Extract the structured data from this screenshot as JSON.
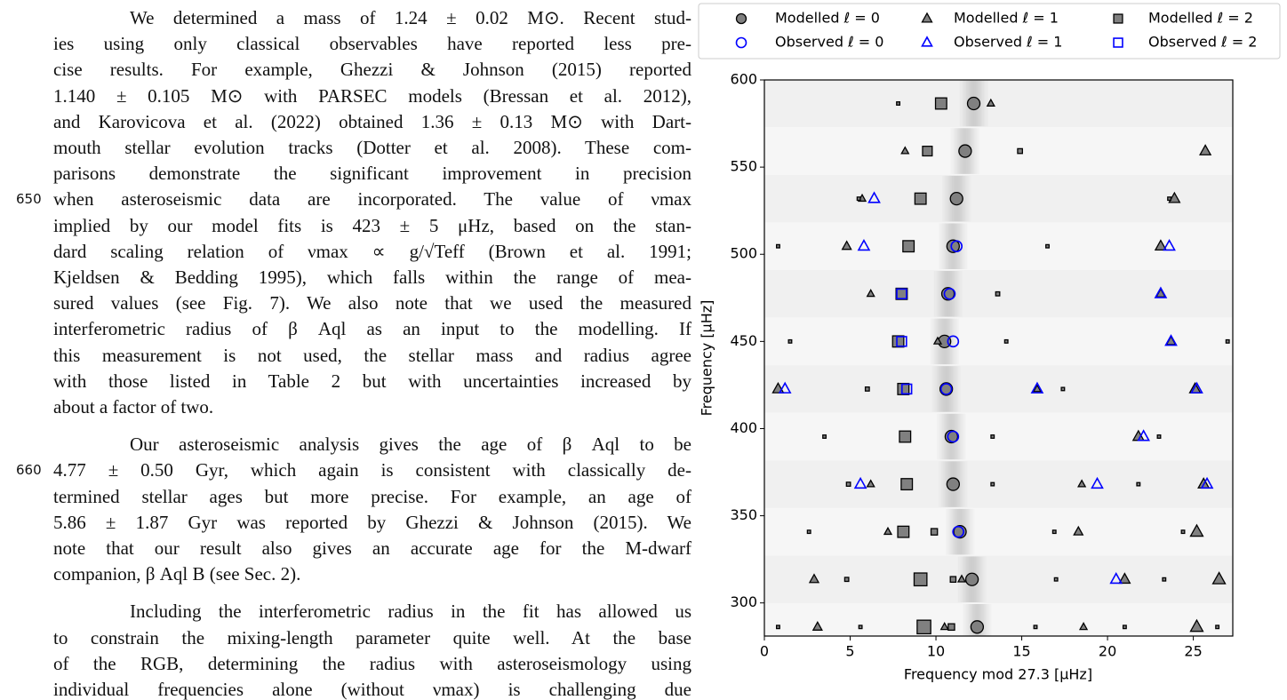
{
  "text": {
    "line_numbers": [
      "650",
      "660"
    ],
    "paragraphs": [
      [
        "We determined a mass of 1.24 ± 0.02 M⊙. Recent stud-",
        "ies using only classical observables have reported less pre-",
        "cise results. For example, Ghezzi & Johnson (2015) reported",
        "1.140 ± 0.105 M⊙ with PARSEC models (Bressan et al. 2012),",
        "and Karovicova et al. (2022) obtained 1.36 ± 0.13 M⊙ with Dart-",
        "mouth stellar evolution tracks (Dotter et al. 2008). These com-",
        "parisons demonstrate the significant improvement in precision",
        "when asteroseismic data are incorporated. The value of νmax",
        "implied by our model fits is 423 ± 5 μHz, based on the stan-",
        "dard scaling relation of νmax ∝ g/√Teff (Brown et al. 1991;",
        "Kjeldsen & Bedding 1995), which falls within the range of mea-",
        "sured values (see Fig. 7). We also note that we used the measured",
        "interferometric radius of β Aql as an input to the modelling. If",
        "this measurement is not used, the stellar mass and radius agree",
        "with those listed in Table 2 but with uncertainties increased by",
        "about a factor of two."
      ],
      [
        "Our asteroseismic analysis gives the age of β Aql to be",
        "4.77 ± 0.50 Gyr, which again is consistent with classically de-",
        "termined stellar ages but more precise. For example, an age of",
        "5.86 ± 1.87 Gyr was reported by Ghezzi & Johnson (2015). We",
        "note that our result also gives an accurate age for the M-dwarf",
        "companion, β Aql B (see Sec. 2)."
      ],
      [
        "Including the interferometric radius in the fit has allowed us",
        "to constrain the mixing-length parameter quite well. At the base",
        "of the RGB, determining the radius with asteroseismology using",
        "individual frequencies alone (without νmax) is challenging due"
      ]
    ]
  },
  "chart_data": {
    "type": "scatter",
    "xlabel": "Frequency mod 27.3 [μHz]",
    "ylabel": "Frequency [μHz]",
    "xlim": [
      0,
      27.3
    ],
    "ylim": [
      281,
      600
    ],
    "xticks": [
      0,
      5,
      10,
      15,
      20,
      25
    ],
    "yticks": [
      300,
      350,
      400,
      450,
      500,
      550,
      600
    ],
    "series": [
      {
        "name": "Modelled ℓ = 0",
        "color": "#808080",
        "marker": "circle",
        "filled": true,
        "x": [
          12.2,
          11.7,
          11.2,
          11.0,
          10.7,
          10.5,
          10.6,
          10.9,
          11.0,
          11.4,
          12.1,
          12.4
        ],
        "y": [
          586.5,
          559.2,
          531.9,
          504.6,
          477.3,
          450,
          422.7,
          395.4,
          368.1,
          340.8,
          313.5,
          286.2
        ],
        "sizes": [
          7,
          7,
          7,
          7,
          7,
          7,
          7,
          7,
          7,
          7,
          7,
          7
        ]
      },
      {
        "name": "Modelled ℓ = 1",
        "color": "#808080",
        "marker": "triangle",
        "filled": true,
        "x": [
          13.2,
          8.2,
          25.7,
          5.7,
          23.9,
          4.8,
          23.1,
          6.2,
          23.1,
          10.1,
          23.7,
          0.8,
          15.9,
          25.1,
          21.8,
          6.2,
          18.5,
          25.6,
          7.2,
          18.3,
          25.2,
          2.9,
          11.5,
          21.0,
          26.5,
          3.1,
          10.5,
          18.6,
          25.2
        ],
        "y": [
          586.5,
          559.2,
          559.2,
          531.9,
          531.9,
          504.6,
          504.6,
          477.3,
          477.3,
          450,
          450,
          422.7,
          422.7,
          422.7,
          395.4,
          368.1,
          368.1,
          368.1,
          340.8,
          340.8,
          340.8,
          313.5,
          313.5,
          313.5,
          313.5,
          286.2,
          286.2,
          286.2,
          286.2
        ],
        "sizes": [
          4,
          4,
          6,
          4,
          6,
          5,
          6,
          4,
          5,
          4,
          5,
          6,
          4,
          6,
          6,
          4,
          4,
          6,
          4,
          5,
          7,
          5,
          4,
          6,
          7,
          5,
          4,
          4,
          7
        ]
      },
      {
        "name": "Modelled ℓ = 2",
        "color": "#808080",
        "marker": "square",
        "filled": true,
        "x": [
          10.3,
          7.8,
          9.5,
          14.9,
          9.1,
          5.5,
          23.6,
          8.4,
          0.8,
          16.5,
          8.0,
          13.6,
          7.8,
          1.5,
          14.1,
          27.0,
          8.1,
          6.0,
          17.4,
          8.2,
          3.5,
          13.3,
          23.0,
          8.3,
          4.9,
          13.3,
          21.8,
          8.1,
          9.9,
          2.6,
          16.9,
          24.4,
          9.1,
          11.0,
          4.8,
          17.0,
          23.3,
          9.3,
          10.9,
          0.8,
          5.6,
          15.8,
          21.0,
          26.4
        ],
        "y": [
          586.5,
          586.5,
          559.2,
          559.2,
          531.9,
          531.9,
          531.9,
          504.6,
          504.6,
          504.6,
          477.3,
          477.3,
          450,
          450,
          450,
          450,
          422.7,
          422.7,
          422.7,
          395.4,
          395.4,
          395.4,
          395.4,
          368.1,
          368.1,
          368.1,
          368.1,
          340.8,
          340.8,
          340.8,
          340.8,
          340.8,
          313.5,
          313.5,
          313.5,
          313.5,
          313.5,
          286.2,
          286.2,
          286.2,
          286.2,
          286.2,
          286.2,
          286.2
        ],
        "sizes": [
          7,
          2,
          6,
          3,
          7,
          2,
          2,
          7,
          2,
          2,
          7,
          2.5,
          7,
          2,
          2,
          2,
          7,
          2.5,
          2,
          7,
          2,
          2,
          2,
          7,
          2.5,
          2,
          2,
          7,
          4,
          2,
          2,
          2,
          8,
          3.5,
          2.5,
          2,
          2,
          8.5,
          4,
          2,
          2,
          2,
          2,
          2
        ]
      },
      {
        "name": "Observed ℓ = 0",
        "color": "#0000ff",
        "marker": "circle",
        "filled": false,
        "x": [
          11.2,
          10.8,
          11.0,
          10.6,
          11.0,
          11.3
        ],
        "y": [
          504.6,
          477.3,
          450,
          422.7,
          395.4,
          340.8
        ]
      },
      {
        "name": "Observed ℓ = 1",
        "color": "#0000ff",
        "marker": "triangle",
        "filled": false,
        "x": [
          6.4,
          5.8,
          23.6,
          23.1,
          23.7,
          1.2,
          15.9,
          25.2,
          22.1,
          5.6,
          19.4,
          25.8,
          20.5
        ],
        "y": [
          531.9,
          504.6,
          504.6,
          477.3,
          450,
          422.7,
          422.7,
          422.7,
          395.4,
          368.1,
          368.1,
          368.1,
          313.5
        ]
      },
      {
        "name": "Observed ℓ = 2",
        "color": "#0000ff",
        "marker": "square",
        "filled": false,
        "x": [
          8.0,
          8.0,
          8.3
        ],
        "y": [
          477.3,
          450,
          422.7
        ]
      }
    ]
  }
}
